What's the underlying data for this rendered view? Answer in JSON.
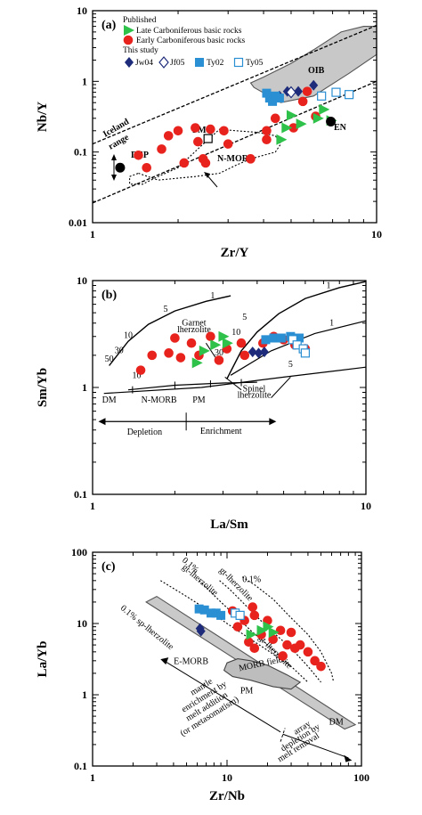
{
  "chart_data": [
    {
      "panel": "(a)",
      "type": "scatter",
      "xlabel": "Zr/Y",
      "ylabel": "Nb/Y",
      "xscale": "log",
      "yscale": "log",
      "xlim": [
        1,
        10
      ],
      "ylim": [
        0.01,
        10
      ],
      "xticks": [
        "1",
        "10"
      ],
      "yticks": [
        "0.01",
        "0.1",
        "1",
        "10"
      ],
      "legend": {
        "heading_published": "Published",
        "late": "Late Carboniferous basic rocks",
        "early": "Early Carboniferous basic rocks",
        "heading_study": "This study",
        "jw04": "Jw04",
        "jf05": "Jf05",
        "ty02": "Ty02",
        "ty05": "Ty05"
      },
      "annotations": {
        "iceland": "Iceland range",
        "oib": "OIB",
        "pm": "PM",
        "en": "EN",
        "dep": "DEP",
        "nmorb": "N-MORB"
      },
      "series": [
        {
          "name": "Early Carboniferous basic rocks",
          "marker": "circle",
          "color": "#e8231e",
          "points": [
            [
              1.45,
              0.09
            ],
            [
              1.55,
              0.06
            ],
            [
              1.75,
              0.11
            ],
            [
              1.85,
              0.17
            ],
            [
              2.0,
              0.2
            ],
            [
              2.1,
              0.07
            ],
            [
              2.3,
              0.22
            ],
            [
              2.35,
              0.14
            ],
            [
              2.45,
              0.08
            ],
            [
              2.5,
              0.07
            ],
            [
              2.6,
              0.21
            ],
            [
              2.9,
              0.2
            ],
            [
              3.0,
              0.13
            ],
            [
              3.6,
              0.08
            ],
            [
              4.1,
              0.15
            ],
            [
              4.1,
              0.2
            ],
            [
              4.4,
              0.3
            ],
            [
              5.1,
              0.22
            ],
            [
              5.5,
              0.52
            ],
            [
              5.7,
              0.72
            ],
            [
              6.1,
              0.32
            ]
          ]
        },
        {
          "name": "Late Carboniferous basic rocks",
          "marker": "triangle",
          "color": "#2ec24a",
          "points": [
            [
              4.6,
              0.15
            ],
            [
              4.8,
              0.22
            ],
            [
              5.0,
              0.33
            ],
            [
              5.4,
              0.25
            ],
            [
              6.2,
              0.3
            ],
            [
              6.5,
              0.4
            ],
            [
              6.9,
              0.28
            ]
          ]
        },
        {
          "name": "Jw04",
          "marker": "diamond-filled",
          "color": "#1d2b7a",
          "points": [
            [
              4.55,
              0.62
            ],
            [
              4.85,
              0.72
            ],
            [
              5.3,
              0.72
            ],
            [
              6.0,
              0.88
            ]
          ]
        },
        {
          "name": "Jf05",
          "marker": "diamond-open",
          "color": "#1d2b7a",
          "points": [
            [
              5.0,
              0.7
            ]
          ]
        },
        {
          "name": "Ty02",
          "marker": "square-filled",
          "color": "#2b8fd3",
          "points": [
            [
              4.1,
              0.68
            ],
            [
              4.2,
              0.58
            ],
            [
              4.3,
              0.52
            ],
            [
              4.4,
              0.62
            ],
            [
              4.55,
              0.58
            ]
          ]
        },
        {
          "name": "Ty05",
          "marker": "square-open",
          "color": "#2b8fd3",
          "points": [
            [
              6.4,
              0.62
            ],
            [
              7.2,
              0.7
            ],
            [
              8.0,
              0.65
            ]
          ]
        },
        {
          "name": "PM",
          "marker": "square-open",
          "color": "#000000",
          "points": [
            [
              2.55,
              0.155
            ]
          ]
        },
        {
          "name": "DEP",
          "marker": "circle-black",
          "color": "#000000",
          "points": [
            [
              1.25,
              0.06
            ]
          ]
        },
        {
          "name": "EN",
          "marker": "circle-black",
          "color": "#000000",
          "points": [
            [
              6.9,
              0.27
            ]
          ]
        }
      ]
    },
    {
      "panel": "(b)",
      "type": "scatter",
      "xlabel": "La/Sm",
      "ylabel": "Sm/Yb",
      "xscale": "log",
      "yscale": "log",
      "xlim": [
        1,
        10
      ],
      "ylim": [
        0.1,
        10
      ],
      "xticks": [
        "1",
        "10"
      ],
      "yticks": [
        "0.1",
        "1",
        "10"
      ],
      "annotations": {
        "garnet": [
          "Garnet",
          "lherzolite"
        ],
        "spinel": [
          "Spinel",
          "lherzolite"
        ],
        "dm": "DM",
        "nmorb": "N-MORB",
        "pm": "PM",
        "depletion": "Depletion",
        "enrichment": "Enrichment",
        "melt_labels": [
          "10",
          "5",
          "30",
          "50",
          "1",
          "5",
          "10",
          "30",
          "1",
          "5",
          "10",
          "1"
        ]
      },
      "series": [
        {
          "name": "Early Carboniferous basic rocks",
          "marker": "circle",
          "color": "#e8231e",
          "points": [
            [
              1.5,
              1.45
            ],
            [
              1.65,
              2.0
            ],
            [
              1.9,
              2.1
            ],
            [
              2.0,
              2.9
            ],
            [
              2.1,
              1.9
            ],
            [
              2.3,
              2.6
            ],
            [
              2.45,
              2.0
            ],
            [
              2.7,
              3.0
            ],
            [
              2.9,
              1.8
            ],
            [
              3.1,
              2.3
            ],
            [
              3.5,
              2.6
            ],
            [
              3.6,
              2.0
            ],
            [
              4.2,
              2.6
            ],
            [
              4.6,
              3.0
            ],
            [
              5.0,
              2.8
            ],
            [
              5.5,
              2.5
            ],
            [
              6.0,
              2.3
            ]
          ]
        },
        {
          "name": "Late Carboniferous basic rocks",
          "marker": "triangle",
          "color": "#2ec24a",
          "points": [
            [
              2.4,
              1.7
            ],
            [
              2.55,
              2.2
            ],
            [
              2.8,
              2.5
            ],
            [
              3.0,
              3.0
            ],
            [
              3.1,
              2.6
            ]
          ]
        },
        {
          "name": "Jw04",
          "marker": "diamond-filled",
          "color": "#1d2b7a",
          "points": [
            [
              3.85,
              2.15
            ],
            [
              4.05,
              2.1
            ],
            [
              4.25,
              2.15
            ]
          ]
        },
        {
          "name": "Ty02",
          "marker": "square-filled",
          "color": "#2b8fd3",
          "points": [
            [
              4.3,
              2.8
            ],
            [
              4.6,
              2.9
            ],
            [
              4.9,
              2.9
            ],
            [
              5.3,
              3.0
            ],
            [
              5.7,
              2.9
            ]
          ]
        },
        {
          "name": "Ty05",
          "marker": "square-open",
          "color": "#2b8fd3",
          "points": [
            [
              5.4,
              2.8
            ],
            [
              5.6,
              2.5
            ],
            [
              5.9,
              2.3
            ],
            [
              6.0,
              2.1
            ]
          ]
        }
      ]
    },
    {
      "panel": "(c)",
      "type": "scatter",
      "xlabel": "Zr/Nb",
      "ylabel": "La/Yb",
      "xscale": "log",
      "yscale": "log",
      "xlim": [
        1,
        100
      ],
      "ylim": [
        0.1,
        100
      ],
      "xticks": [
        "1",
        "10",
        "100"
      ],
      "yticks": [
        "0.1",
        "1",
        "10",
        "100"
      ],
      "annotations": {
        "sp": "0.1% sp-lherzolite",
        "gtsp1": "gt-lherzolite",
        "gtsp2": "gt-lherzolite",
        "gtsp3": "gt-lherzolite",
        "p01a": "0.1%",
        "p01b": "0.1%",
        "emorb": "E-MORB",
        "morbfield": "MORB field",
        "pm": "PM",
        "dm": "DM",
        "mantle": [
          "mantle",
          "enrichment by",
          "melt addition",
          "(or metasomatism)"
        ],
        "array": [
          "array",
          "depletion by",
          "melt removal"
        ]
      },
      "series": [
        {
          "name": "Early Carboniferous basic rocks",
          "marker": "circle",
          "color": "#e8231e",
          "points": [
            [
              11,
              15
            ],
            [
              12,
              9
            ],
            [
              13.5,
              11
            ],
            [
              14.5,
              5.5
            ],
            [
              15.5,
              17
            ],
            [
              16,
              4.5
            ],
            [
              18,
              7
            ],
            [
              20,
              11
            ],
            [
              22,
              6
            ],
            [
              25,
              8
            ],
            [
              26,
              3.5
            ],
            [
              28,
              5
            ],
            [
              30,
              7.5
            ],
            [
              32,
              4.5
            ],
            [
              35,
              5
            ],
            [
              40,
              4
            ],
            [
              45,
              3
            ],
            [
              50,
              2.5
            ],
            [
              16,
              13
            ]
          ]
        },
        {
          "name": "Late Carboniferous basic rocks",
          "marker": "triangle",
          "color": "#2ec24a",
          "points": [
            [
              15,
              7
            ],
            [
              18,
              8
            ],
            [
              20,
              9
            ],
            [
              22,
              7.5
            ]
          ]
        },
        {
          "name": "Jw04",
          "marker": "diamond-filled",
          "color": "#1d2b7a",
          "points": [
            [
              6.3,
              8.5
            ],
            [
              6.4,
              7.8
            ]
          ]
        },
        {
          "name": "Ty02",
          "marker": "square-filled",
          "color": "#2b8fd3",
          "points": [
            [
              6.2,
              16
            ],
            [
              6.8,
              15.5
            ],
            [
              7.6,
              14
            ],
            [
              8.3,
              14
            ],
            [
              9.0,
              13
            ]
          ]
        },
        {
          "name": "Ty05",
          "marker": "square-open",
          "color": "#2b8fd3",
          "points": [
            [
              11.5,
              14
            ],
            [
              12.5,
              13
            ]
          ]
        }
      ]
    }
  ]
}
